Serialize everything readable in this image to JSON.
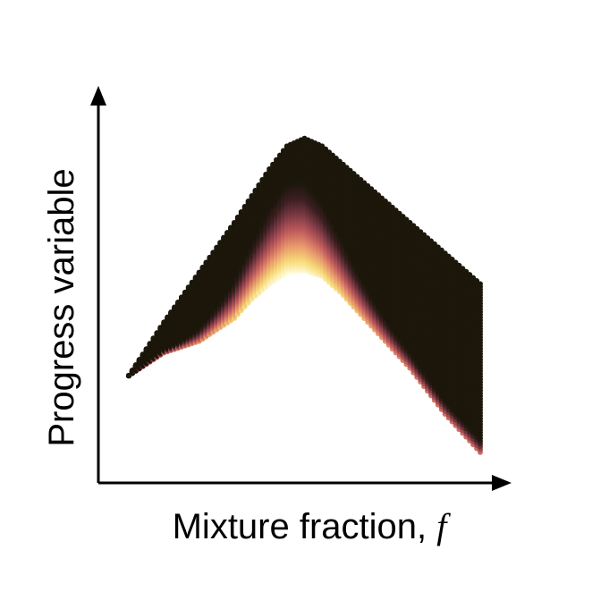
{
  "chart_data": {
    "type": "heatmap",
    "title": "",
    "xlabel": "Mixture fraction, ",
    "xlabel_symbol": "f",
    "ylabel": "Progress variable",
    "ticks_shown": false,
    "grid": false,
    "legend": "none",
    "x_range": [
      0,
      1
    ],
    "y_range": [
      0,
      1
    ],
    "upper_boundary": {
      "x": [
        0.0,
        0.1,
        0.2,
        0.3,
        0.4,
        0.45,
        0.5,
        0.55,
        0.6,
        0.7,
        0.8,
        0.9,
        1.0
      ],
      "y": [
        0.28,
        0.42,
        0.55,
        0.68,
        0.82,
        0.88,
        0.9,
        0.88,
        0.84,
        0.76,
        0.68,
        0.6,
        0.52
      ]
    },
    "lower_boundary": {
      "x": [
        0.0,
        0.1,
        0.2,
        0.3,
        0.35,
        0.4,
        0.45,
        0.5,
        0.55,
        0.6,
        0.7,
        0.8,
        0.9,
        1.0
      ],
      "y": [
        0.28,
        0.34,
        0.37,
        0.43,
        0.48,
        0.52,
        0.55,
        0.555,
        0.54,
        0.5,
        0.4,
        0.3,
        0.18,
        0.08
      ]
    },
    "colormap": {
      "name": "pink-to-dark",
      "stops": [
        "#fffbd6",
        "#f7d978",
        "#e89a6c",
        "#c15c5d",
        "#7d3a45",
        "#3b1f22",
        "#1c170b"
      ]
    },
    "colors": {
      "axis": "#000000",
      "dot_dark": "#1c170b"
    }
  }
}
